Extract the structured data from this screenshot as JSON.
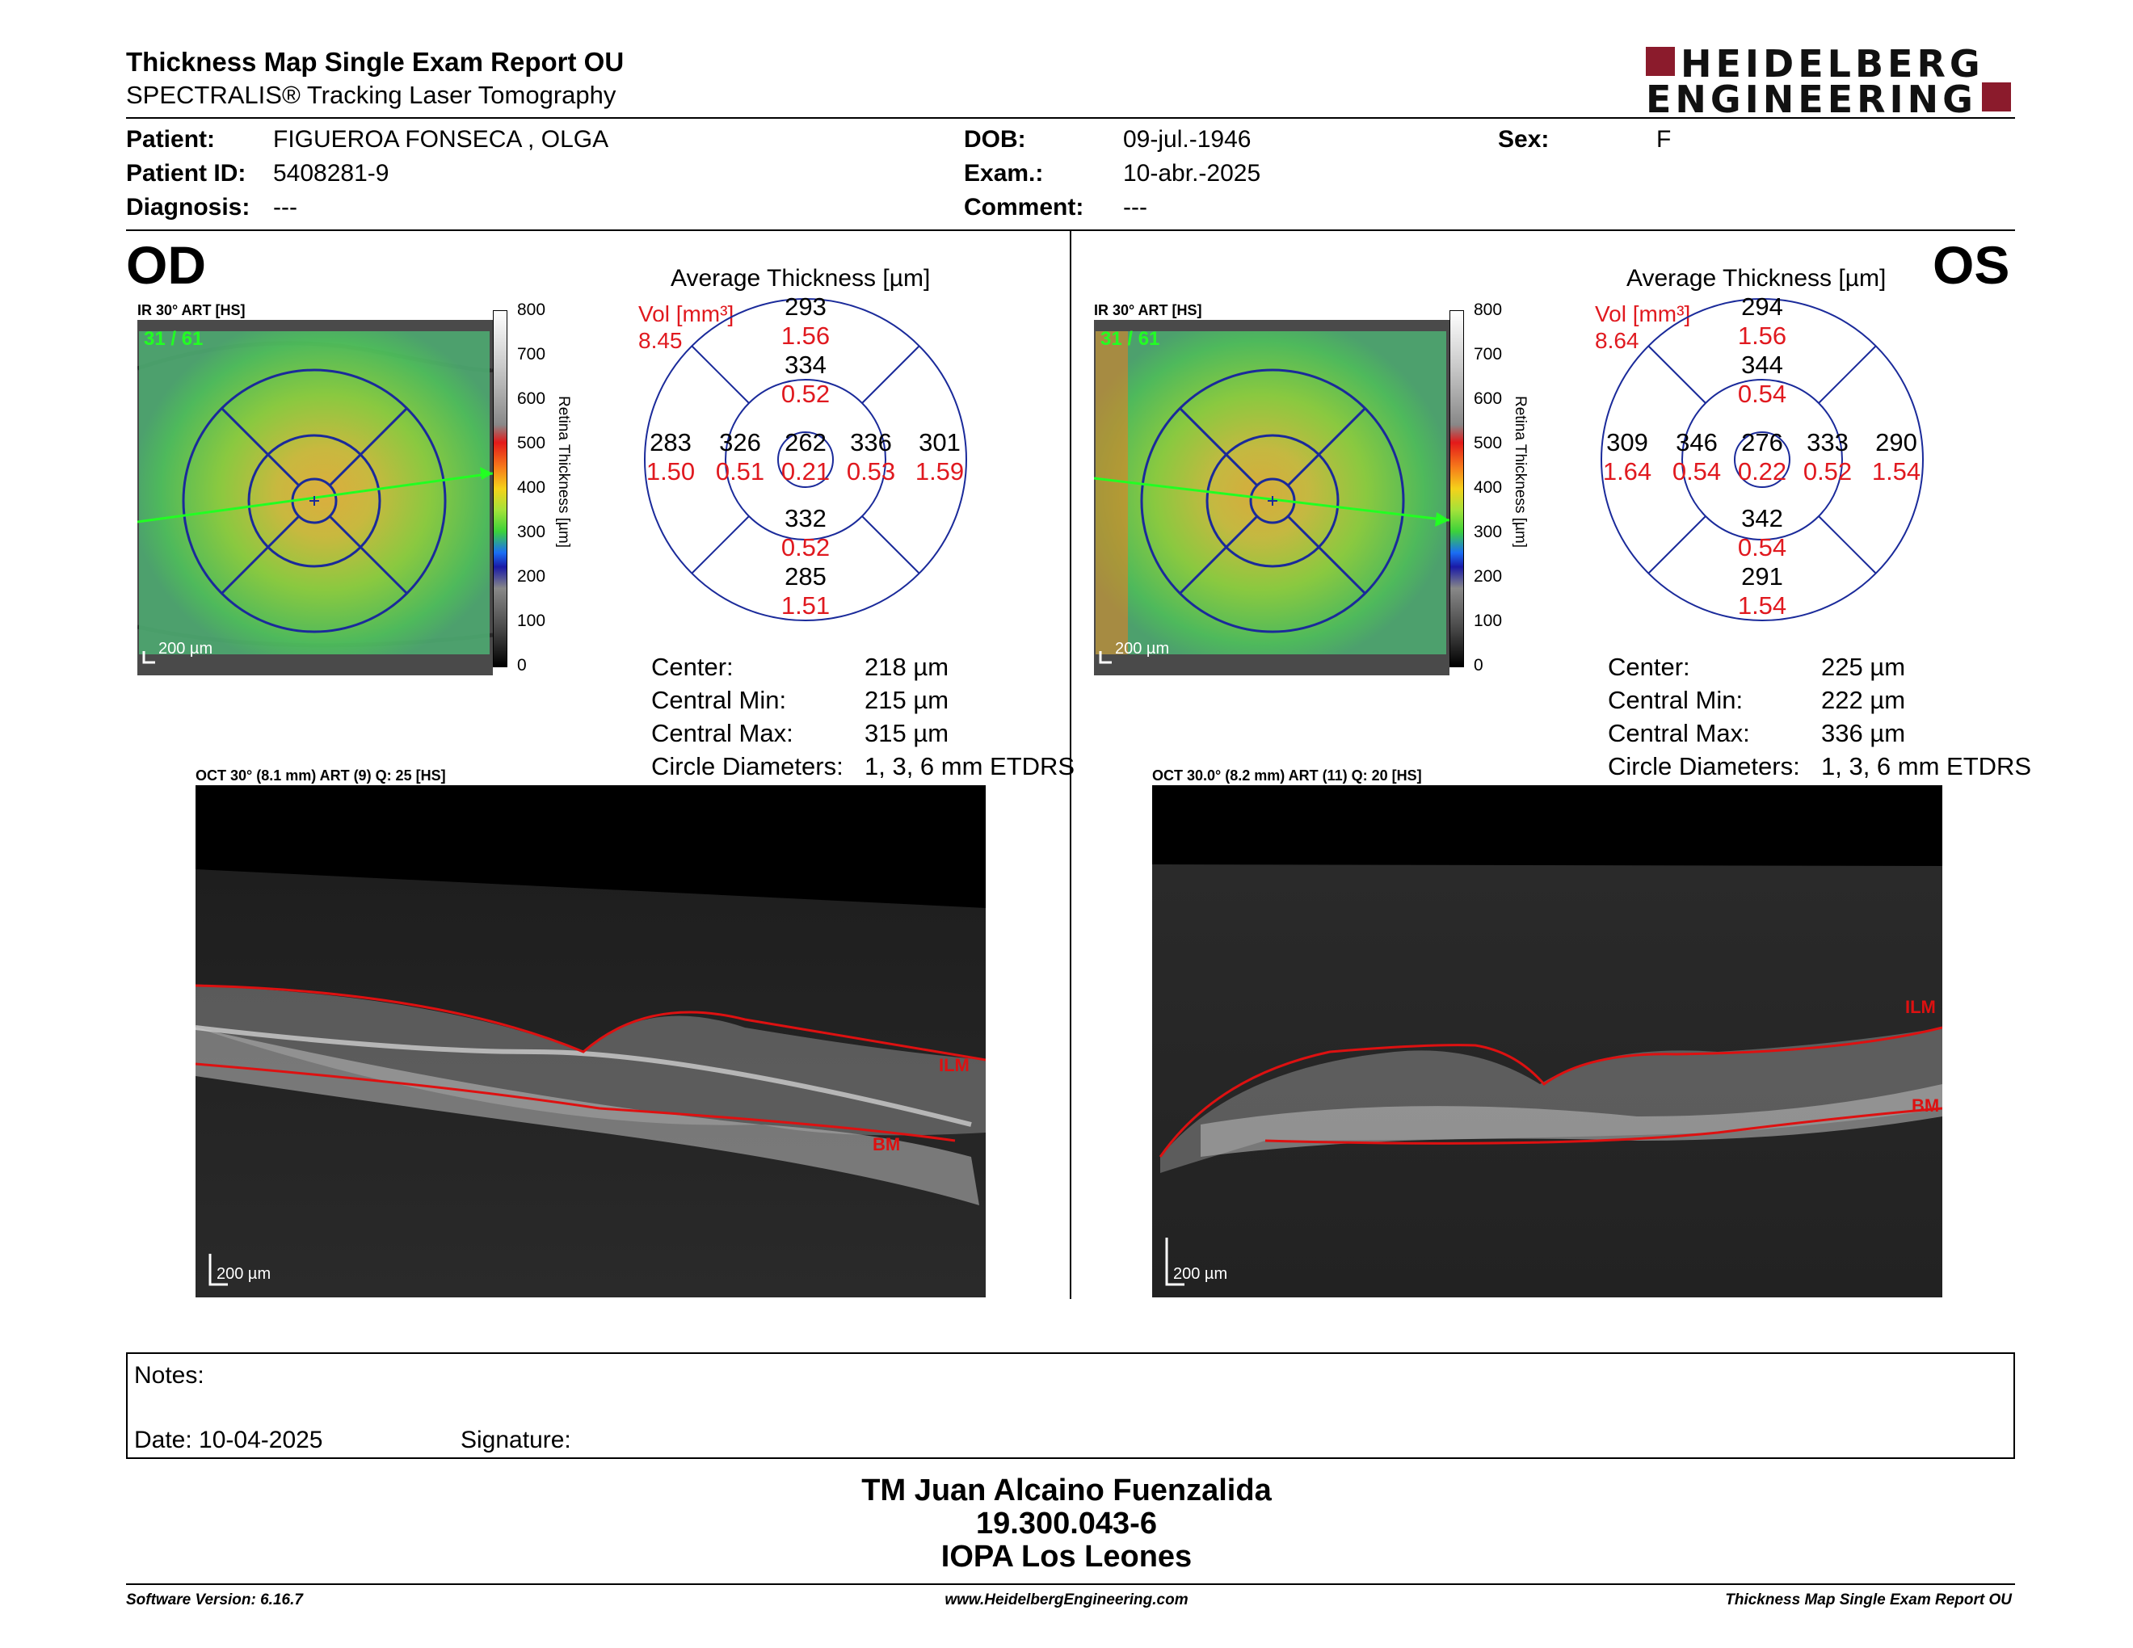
{
  "header": {
    "title": "Thickness Map Single Exam Report OU",
    "subtitle": "SPECTRALIS® Tracking Laser Tomography",
    "logo_line1": "HEIDELBERG",
    "logo_line2": "ENGINEERING"
  },
  "patient": {
    "patient_label": "Patient:",
    "patient_value": "FIGUEROA FONSECA , OLGA",
    "id_label": "Patient ID:",
    "id_value": "5408281-9",
    "diagnosis_label": "Diagnosis:",
    "diagnosis_value": "---",
    "dob_label": "DOB:",
    "dob_value": "09-jul.-1946",
    "exam_label": "Exam.:",
    "exam_value": "10-abr.-2025",
    "comment_label": "Comment:",
    "comment_value": "---",
    "sex_label": "Sex:",
    "sex_value": "F"
  },
  "od": {
    "eye": "OD",
    "ir_label": "IR 30° ART [HS]",
    "frame_count": "31 / 61",
    "scale_label": "200 µm",
    "oct_label": "OCT 30° (8.1 mm) ART (9) Q: 25 [HS]",
    "oct_scale": "200 µm",
    "ilm": "ILM",
    "bm": "BM",
    "chart_title": "Average Thickness [µm]",
    "vol_label": "Vol [mm³]",
    "vol_value": "8.45",
    "sectors": {
      "outer_sup": {
        "t": "293",
        "v": "1.56"
      },
      "inner_sup": {
        "t": "334",
        "v": "0.52"
      },
      "outer_left": {
        "t": "283",
        "v": "1.50"
      },
      "inner_left": {
        "t": "326",
        "v": "0.51"
      },
      "center": {
        "t": "262",
        "v": "0.21"
      },
      "inner_right": {
        "t": "336",
        "v": "0.53"
      },
      "outer_right": {
        "t": "301",
        "v": "1.59"
      },
      "inner_inf": {
        "t": "332",
        "v": "0.52"
      },
      "outer_inf": {
        "t": "285",
        "v": "1.51"
      }
    },
    "stats": {
      "center_label": "Center:",
      "center_value": "218 µm",
      "min_label": "Central Min:",
      "min_value": "215 µm",
      "max_label": "Central Max:",
      "max_value": "315 µm",
      "diam_label": "Circle Diameters:",
      "diam_value": "1, 3, 6 mm ETDRS"
    }
  },
  "os": {
    "eye": "OS",
    "ir_label": "IR 30° ART [HS]",
    "frame_count": "31 / 61",
    "scale_label": "200 µm",
    "oct_label": "OCT 30.0° (8.2 mm) ART (11) Q: 20 [HS]",
    "oct_scale": "200 µm",
    "ilm": "ILM",
    "bm": "BM",
    "chart_title": "Average Thickness [µm]",
    "vol_label": "Vol [mm³]",
    "vol_value": "8.64",
    "sectors": {
      "outer_sup": {
        "t": "294",
        "v": "1.56"
      },
      "inner_sup": {
        "t": "344",
        "v": "0.54"
      },
      "outer_left": {
        "t": "309",
        "v": "1.64"
      },
      "inner_left": {
        "t": "346",
        "v": "0.54"
      },
      "center": {
        "t": "276",
        "v": "0.22"
      },
      "inner_right": {
        "t": "333",
        "v": "0.52"
      },
      "outer_right": {
        "t": "290",
        "v": "1.54"
      },
      "inner_inf": {
        "t": "342",
        "v": "0.54"
      },
      "outer_inf": {
        "t": "291",
        "v": "1.54"
      }
    },
    "stats": {
      "center_label": "Center:",
      "center_value": "225 µm",
      "min_label": "Central Min:",
      "min_value": "222 µm",
      "max_label": "Central Max:",
      "max_value": "336 µm",
      "diam_label": "Circle Diameters:",
      "diam_value": "1, 3, 6 mm ETDRS"
    }
  },
  "colorbar": {
    "ticks": [
      "800",
      "700",
      "600",
      "500",
      "400",
      "300",
      "200",
      "100",
      "0"
    ],
    "title": "Retina Thickness [µm]"
  },
  "notes": {
    "notes_label": "Notes:",
    "date_label": "Date: 10-04-2025",
    "signature_label": "Signature:"
  },
  "signature": {
    "name": "TM Juan Alcaino Fuenzalida",
    "id": "19.300.043-6",
    "clinic": "IOPA Los Leones"
  },
  "footer": {
    "software": "Software Version: 6.16.7",
    "website": "www.HeidelbergEngineering.com",
    "report": "Thickness Map Single Exam Report OU"
  },
  "colors": {
    "red": "#e0191f",
    "navy": "#1a2a9a",
    "logo_red": "#8b1b2c",
    "green": "#22ff22"
  }
}
